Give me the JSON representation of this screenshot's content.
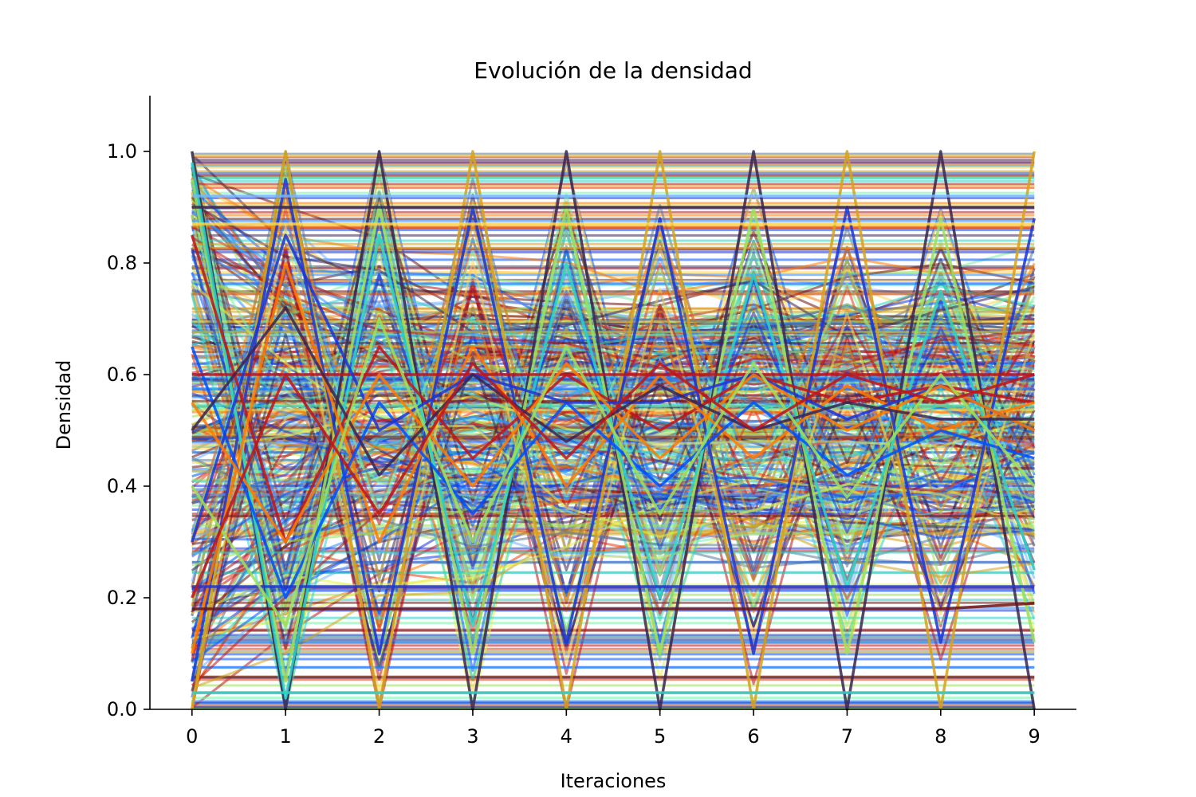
{
  "chart_data": {
    "type": "line",
    "title": "Evolución de la densidad",
    "xlabel": "Iteraciones",
    "ylabel": "Densidad",
    "xlim": [
      -0.45,
      9.45
    ],
    "ylim": [
      0.0,
      1.1
    ],
    "x_ticks": [
      0,
      1,
      2,
      3,
      4,
      5,
      6,
      7,
      8,
      9
    ],
    "x_tick_labels": [
      "0",
      "1",
      "2",
      "3",
      "4",
      "5",
      "6",
      "7",
      "8",
      "9"
    ],
    "y_ticks": [
      0.0,
      0.2,
      0.4,
      0.6,
      0.8,
      1.0
    ],
    "y_tick_labels": [
      "0.0",
      "0.2",
      "0.4",
      "0.6",
      "0.8",
      "1.0"
    ],
    "grid": false,
    "legend": "none",
    "x": [
      0,
      1,
      2,
      3,
      4,
      5,
      6,
      7,
      8,
      9
    ],
    "series": [
      {
        "color": "#3a2550",
        "values": [
          1.0,
          0.0,
          1.0,
          0.0,
          1.0,
          0.0,
          1.0,
          0.0,
          1.0,
          0.0
        ]
      },
      {
        "color": "#d6a21a",
        "values": [
          0.0,
          1.0,
          0.0,
          1.0,
          0.0,
          1.0,
          0.0,
          1.0,
          0.0,
          1.0
        ]
      },
      {
        "color": "#9be05a",
        "values": [
          0.95,
          0.05,
          0.9,
          0.1,
          0.9,
          0.1,
          0.9,
          0.1,
          0.88,
          0.12
        ]
      },
      {
        "color": "#1a35d8",
        "values": [
          0.05,
          0.95,
          0.1,
          0.9,
          0.12,
          0.88,
          0.1,
          0.9,
          0.12,
          0.88
        ]
      },
      {
        "color": "#2bd3c8",
        "values": [
          0.98,
          0.02,
          0.85,
          0.15,
          0.8,
          0.2,
          0.78,
          0.22,
          0.75,
          0.25
        ]
      },
      {
        "color": "#c0141a",
        "values": [
          0.85,
          0.3,
          0.65,
          0.45,
          0.6,
          0.5,
          0.6,
          0.55,
          0.58,
          0.55
        ]
      },
      {
        "color": "#ff7a00",
        "values": [
          0.1,
          0.8,
          0.3,
          0.65,
          0.4,
          0.6,
          0.45,
          0.58,
          0.5,
          0.55
        ]
      },
      {
        "color": "#0050ff",
        "values": [
          0.65,
          0.2,
          0.55,
          0.35,
          0.55,
          0.4,
          0.55,
          0.42,
          0.5,
          0.45
        ]
      },
      {
        "color": "#6fb5ff",
        "values": [
          0.92,
          0.92,
          0.92,
          0.92,
          0.92,
          0.92,
          0.92,
          0.92,
          0.92,
          0.92
        ]
      },
      {
        "color": "#3a2550",
        "values": [
          0.9,
          0.9,
          0.9,
          0.9,
          0.9,
          0.9,
          0.9,
          0.9,
          0.9,
          0.9
        ]
      },
      {
        "color": "#1a35d8",
        "values": [
          0.22,
          0.22,
          0.22,
          0.22,
          0.22,
          0.22,
          0.22,
          0.22,
          0.22,
          0.22
        ]
      },
      {
        "color": "#c0141a",
        "values": [
          0.6,
          0.6,
          0.6,
          0.6,
          0.6,
          0.6,
          0.6,
          0.6,
          0.6,
          0.6
        ]
      },
      {
        "color": "#ffd34a",
        "values": [
          0.87,
          0.87,
          0.87,
          0.87,
          0.87,
          0.87,
          0.87,
          0.87,
          0.87,
          0.87
        ]
      },
      {
        "color": "#6e1010",
        "values": [
          0.18,
          0.18,
          0.18,
          0.18,
          0.18,
          0.18,
          0.18,
          0.18,
          0.18,
          0.19
        ]
      },
      {
        "color": "#2bd3c8",
        "values": [
          0.03,
          0.03,
          0.03,
          0.03,
          0.03,
          0.03,
          0.03,
          0.03,
          0.03,
          0.03
        ]
      },
      {
        "color": "#1a35d8",
        "values": [
          0.3,
          0.85,
          0.5,
          0.6,
          0.55,
          0.55,
          0.6,
          0.52,
          0.58,
          0.5
        ]
      },
      {
        "color": "#ff7a00",
        "values": [
          0.55,
          0.3,
          0.6,
          0.4,
          0.62,
          0.45,
          0.6,
          0.5,
          0.58,
          0.5
        ]
      },
      {
        "color": "#3a2550",
        "values": [
          0.5,
          0.72,
          0.42,
          0.6,
          0.48,
          0.58,
          0.5,
          0.55,
          0.52,
          0.52
        ]
      },
      {
        "color": "#9be05a",
        "values": [
          0.4,
          0.15,
          0.7,
          0.3,
          0.65,
          0.35,
          0.62,
          0.38,
          0.6,
          0.4
        ]
      },
      {
        "color": "#c0141a",
        "values": [
          0.2,
          0.6,
          0.35,
          0.62,
          0.45,
          0.62,
          0.5,
          0.6,
          0.55,
          0.6
        ]
      }
    ],
    "background_lines": {
      "count": 420,
      "palette": [
        "#3a2550",
        "#1a35d8",
        "#0050ff",
        "#2b8cff",
        "#6fb5ff",
        "#2bd3c8",
        "#79f2a8",
        "#9be05a",
        "#e6f04a",
        "#ffd34a",
        "#d6a21a",
        "#ff7a00",
        "#e83a14",
        "#c0141a",
        "#6e1010",
        "#5a7a9a"
      ]
    }
  }
}
